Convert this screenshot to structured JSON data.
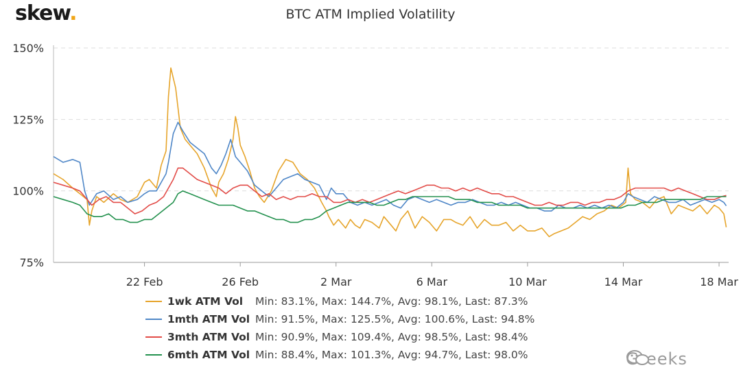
{
  "brand": {
    "name": "skew",
    "dot": "."
  },
  "watermark": "Greeks",
  "chart_data": {
    "type": "line",
    "title": "BTC ATM Implied Volatility",
    "y_ticks": [
      75,
      100,
      125,
      150
    ],
    "y_tick_labels": [
      "75%",
      "100%",
      "125%",
      "150%"
    ],
    "ylim": [
      75,
      150
    ],
    "x_ticks": [
      "22 Feb",
      "26 Feb",
      "2 Mar",
      "6 Mar",
      "10 Mar",
      "14 Mar",
      "18 Mar"
    ],
    "x_tick_days": [
      22,
      26,
      30,
      34,
      38,
      42,
      46
    ],
    "xlim": [
      18.2,
      46.4
    ],
    "x_note": "x values are days since 1 Feb (22 Feb = 22, 2 Mar = 30)",
    "grid": "horizontal dashed",
    "legend_position": "bottom",
    "series": [
      {
        "name": "1wk ATM Vol",
        "color": "#e6a42a",
        "stats": "Min: 83.1%, Max: 144.7%, Avg: 98.1%, Last: 87.3%",
        "x": [
          18.2,
          18.6,
          19.0,
          19.3,
          19.6,
          19.7,
          19.8,
          20.0,
          20.3,
          20.7,
          21.0,
          21.3,
          21.7,
          22.0,
          22.2,
          22.5,
          22.7,
          22.9,
          23.0,
          23.1,
          23.3,
          23.5,
          23.7,
          23.9,
          24.2,
          24.5,
          24.8,
          25.0,
          25.1,
          25.3,
          25.5,
          25.7,
          25.8,
          25.9,
          26.0,
          26.2,
          26.4,
          26.6,
          26.8,
          27.0,
          27.3,
          27.6,
          27.9,
          28.2,
          28.5,
          28.8,
          29.1,
          29.4,
          29.6,
          29.7,
          29.9,
          30.1,
          30.4,
          30.6,
          30.8,
          31.0,
          31.2,
          31.5,
          31.8,
          32.0,
          32.3,
          32.5,
          32.7,
          33.0,
          33.3,
          33.6,
          33.9,
          34.2,
          34.5,
          34.8,
          35.0,
          35.3,
          35.6,
          35.9,
          36.2,
          36.5,
          36.8,
          37.1,
          37.4,
          37.7,
          38.0,
          38.3,
          38.6,
          38.9,
          39.1,
          39.4,
          39.7,
          40.0,
          40.3,
          40.6,
          40.9,
          41.2,
          41.5,
          41.8,
          42.1,
          42.2,
          42.3,
          42.5,
          42.8,
          43.1,
          43.4,
          43.7,
          44.0,
          44.3,
          44.6,
          44.9,
          45.2,
          45.5,
          45.8,
          46.0,
          46.1,
          46.2,
          46.3
        ],
        "y": [
          106,
          104,
          101,
          99,
          97,
          88,
          93,
          98,
          96,
          99,
          97,
          96,
          98,
          103,
          104,
          101,
          109,
          114,
          133,
          143,
          136,
          122,
          118,
          116,
          113,
          108,
          101,
          98,
          103,
          106,
          111,
          118,
          126,
          122,
          116,
          112,
          107,
          101,
          98,
          96,
          100,
          107,
          111,
          110,
          106,
          104,
          101,
          96,
          93,
          91,
          88,
          90,
          87,
          90,
          88,
          87,
          90,
          89,
          87,
          91,
          88,
          86,
          90,
          93,
          87,
          91,
          89,
          86,
          90,
          90,
          89,
          88,
          91,
          87,
          90,
          88,
          88,
          89,
          86,
          88,
          86,
          86,
          87,
          84,
          85,
          86,
          87,
          89,
          91,
          90,
          92,
          93,
          95,
          94,
          96,
          108,
          99,
          97,
          96,
          94,
          97,
          98,
          92,
          95,
          94,
          93,
          95,
          92,
          95,
          94,
          93,
          92,
          87.3
        ]
      },
      {
        "name": "1mth ATM Vol",
        "color": "#4e86c7",
        "stats": "Min: 91.5%, Max: 125.5%, Avg: 100.6%, Last: 94.8%",
        "x": [
          18.2,
          18.6,
          19.0,
          19.3,
          19.5,
          19.7,
          20.0,
          20.3,
          20.7,
          21.0,
          21.3,
          21.7,
          22.0,
          22.2,
          22.5,
          22.7,
          22.9,
          23.0,
          23.2,
          23.4,
          23.6,
          23.9,
          24.2,
          24.5,
          24.8,
          25.0,
          25.2,
          25.4,
          25.6,
          25.8,
          26.0,
          26.3,
          26.6,
          26.9,
          27.2,
          27.5,
          27.8,
          28.1,
          28.4,
          28.7,
          29.0,
          29.3,
          29.6,
          29.8,
          30.0,
          30.3,
          30.6,
          30.9,
          31.2,
          31.5,
          31.8,
          32.1,
          32.4,
          32.7,
          33.0,
          33.3,
          33.6,
          33.9,
          34.2,
          34.5,
          34.8,
          35.1,
          35.4,
          35.7,
          36.0,
          36.3,
          36.6,
          36.9,
          37.2,
          37.5,
          37.8,
          38.1,
          38.4,
          38.7,
          39.0,
          39.3,
          39.6,
          39.9,
          40.2,
          40.5,
          40.8,
          41.1,
          41.4,
          41.7,
          42.0,
          42.2,
          42.4,
          42.7,
          43.0,
          43.3,
          43.6,
          43.9,
          44.2,
          44.5,
          44.8,
          45.1,
          45.4,
          45.7,
          46.0,
          46.2,
          46.3
        ],
        "y": [
          112,
          110,
          111,
          110,
          100,
          95,
          99,
          100,
          97,
          98,
          96,
          97,
          99,
          100,
          100,
          103,
          106,
          110,
          120,
          124,
          121,
          117,
          115,
          113,
          108,
          106,
          109,
          113,
          118,
          112,
          110,
          107,
          102,
          100,
          98,
          101,
          104,
          105,
          106,
          104,
          103,
          102,
          97,
          101,
          99,
          99,
          96,
          95,
          96,
          95,
          96,
          97,
          95,
          94,
          97,
          98,
          97,
          96,
          97,
          96,
          95,
          96,
          96,
          97,
          96,
          95,
          95,
          96,
          95,
          96,
          95,
          94,
          94,
          93,
          93,
          95,
          94,
          94,
          95,
          94,
          95,
          94,
          95,
          94,
          96,
          99,
          98,
          97,
          96,
          98,
          97,
          96,
          96,
          97,
          95,
          96,
          97,
          96,
          97,
          96,
          94.8
        ]
      },
      {
        "name": "3mth ATM Vol",
        "color": "#e24b47",
        "stats": "Min: 90.9%, Max: 109.4%, Avg: 98.5%, Last: 98.4%",
        "x": [
          18.2,
          18.6,
          19.0,
          19.3,
          19.6,
          19.8,
          20.1,
          20.4,
          20.7,
          21.0,
          21.3,
          21.6,
          21.9,
          22.2,
          22.5,
          22.8,
          23.0,
          23.2,
          23.4,
          23.6,
          23.9,
          24.2,
          24.5,
          24.8,
          25.1,
          25.4,
          25.7,
          26.0,
          26.3,
          26.6,
          26.9,
          27.2,
          27.5,
          27.8,
          28.1,
          28.4,
          28.7,
          29.0,
          29.3,
          29.6,
          29.9,
          30.2,
          30.5,
          30.8,
          31.1,
          31.4,
          31.7,
          32.0,
          32.3,
          32.6,
          32.9,
          33.2,
          33.5,
          33.8,
          34.1,
          34.4,
          34.7,
          35.0,
          35.3,
          35.6,
          35.9,
          36.2,
          36.5,
          36.8,
          37.1,
          37.4,
          37.7,
          38.0,
          38.3,
          38.6,
          38.9,
          39.2,
          39.5,
          39.8,
          40.1,
          40.4,
          40.7,
          41.0,
          41.3,
          41.6,
          41.9,
          42.2,
          42.5,
          42.8,
          43.1,
          43.4,
          43.7,
          44.0,
          44.3,
          44.6,
          44.9,
          45.2,
          45.5,
          45.8,
          46.1,
          46.3
        ],
        "y": [
          103,
          102,
          101,
          100,
          97,
          95,
          97,
          98,
          96,
          96,
          94,
          92,
          93,
          95,
          96,
          98,
          101,
          104,
          108,
          108,
          106,
          104,
          103,
          102,
          101,
          99,
          101,
          102,
          102,
          100,
          98,
          99,
          97,
          98,
          97,
          98,
          98,
          99,
          98,
          98,
          96,
          96,
          97,
          96,
          97,
          96,
          97,
          98,
          99,
          100,
          99,
          100,
          101,
          102,
          102,
          101,
          101,
          100,
          101,
          100,
          101,
          100,
          99,
          99,
          98,
          98,
          97,
          96,
          95,
          95,
          96,
          95,
          95,
          96,
          96,
          95,
          96,
          96,
          97,
          97,
          98,
          100,
          101,
          101,
          101,
          101,
          101,
          100,
          101,
          100,
          99,
          98,
          97,
          97,
          98,
          98.4
        ]
      },
      {
        "name": "6mth ATM Vol",
        "color": "#23914e",
        "stats": "Min: 88.4%, Max: 101.3%, Avg: 94.7%, Last: 98.0%",
        "x": [
          18.2,
          18.6,
          19.0,
          19.3,
          19.6,
          19.9,
          20.2,
          20.5,
          20.8,
          21.1,
          21.4,
          21.7,
          22.0,
          22.3,
          22.6,
          22.9,
          23.2,
          23.4,
          23.6,
          23.9,
          24.2,
          24.5,
          24.8,
          25.1,
          25.4,
          25.7,
          26.0,
          26.3,
          26.6,
          26.9,
          27.2,
          27.5,
          27.8,
          28.1,
          28.4,
          28.7,
          29.0,
          29.3,
          29.6,
          29.9,
          30.2,
          30.5,
          30.8,
          31.1,
          31.4,
          31.7,
          32.0,
          32.3,
          32.6,
          32.9,
          33.2,
          33.5,
          33.8,
          34.1,
          34.4,
          34.7,
          35.0,
          35.3,
          35.6,
          35.9,
          36.2,
          36.5,
          36.8,
          37.1,
          37.4,
          37.7,
          38.0,
          38.3,
          38.6,
          38.9,
          39.2,
          39.5,
          39.8,
          40.1,
          40.4,
          40.7,
          41.0,
          41.3,
          41.6,
          41.9,
          42.2,
          42.5,
          42.8,
          43.1,
          43.4,
          43.7,
          44.0,
          44.3,
          44.6,
          44.9,
          45.2,
          45.5,
          45.8,
          46.1,
          46.3
        ],
        "y": [
          98,
          97,
          96,
          95,
          92,
          91,
          91,
          92,
          90,
          90,
          89,
          89,
          90,
          90,
          92,
          94,
          96,
          99,
          100,
          99,
          98,
          97,
          96,
          95,
          95,
          95,
          94,
          93,
          93,
          92,
          91,
          90,
          90,
          89,
          89,
          90,
          90,
          91,
          93,
          94,
          95,
          96,
          96,
          96,
          96,
          95,
          95,
          96,
          97,
          97,
          98,
          98,
          98,
          98,
          98,
          98,
          97,
          97,
          97,
          96,
          96,
          96,
          95,
          95,
          95,
          95,
          94,
          94,
          94,
          94,
          94,
          94,
          94,
          94,
          94,
          94,
          94,
          94,
          94,
          94,
          95,
          95,
          96,
          96,
          96,
          97,
          97,
          97,
          97,
          97,
          97,
          98,
          98,
          98,
          98.0
        ]
      }
    ]
  }
}
